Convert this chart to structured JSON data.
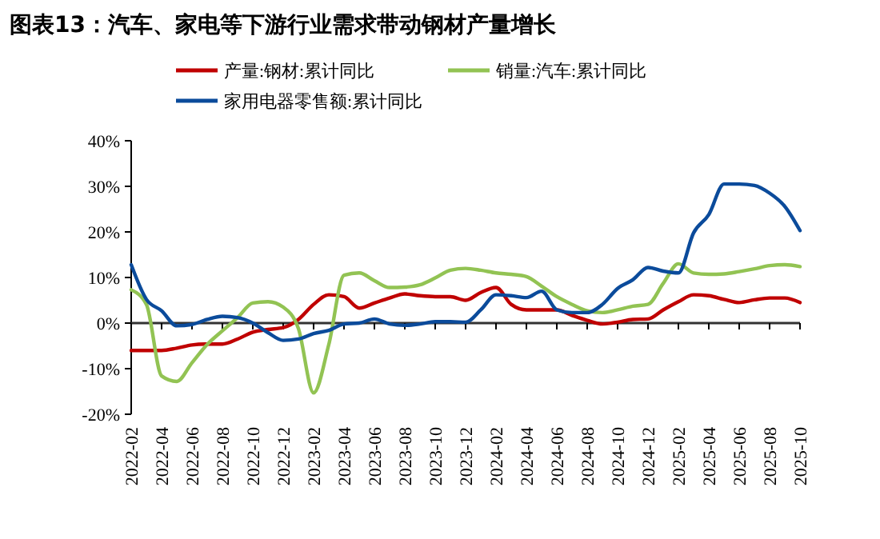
{
  "chart_data": {
    "type": "line",
    "title": "图表13：汽车、家电等下游行业需求带动钢材产量增长",
    "categories": [
      "2022-02",
      null,
      "2022-04",
      null,
      "2022-06",
      null,
      "2022-08",
      null,
      "2022-10",
      null,
      "2022-12",
      null,
      "2023-02",
      null,
      "2023-04",
      null,
      "2023-06",
      null,
      "2023-08",
      null,
      "2023-10",
      null,
      "2023-12",
      null,
      "2024-02",
      null,
      "2024-04",
      null,
      "2024-06",
      null,
      "2024-08",
      null,
      "2024-10",
      null,
      "2024-12",
      null,
      "2025-02",
      null,
      "2025-04",
      null,
      "2025-06",
      null,
      "2025-08",
      null,
      "2025-10"
    ],
    "series": [
      {
        "name": "产量:钢材:累计同比",
        "color": "#c00000",
        "values": [
          -6.0,
          -6.0,
          -6.0,
          -5.5,
          -4.8,
          -4.6,
          -4.6,
          -3.5,
          -2.0,
          -1.4,
          -1.0,
          0.8,
          4.1,
          6.2,
          5.8,
          3.3,
          4.4,
          5.5,
          6.4,
          6.0,
          5.8,
          5.8,
          5.0,
          6.7,
          7.8,
          4.1,
          2.9,
          2.9,
          2.9,
          1.7,
          0.6,
          -0.2,
          0.2,
          0.8,
          0.9,
          2.9,
          4.7,
          6.2,
          6.0,
          5.2,
          4.5,
          5.1,
          5.5,
          5.5,
          4.5
        ]
      },
      {
        "name": "销量:汽车:累计同比",
        "color": "#92c353",
        "values": [
          7.3,
          4.1,
          -11.6,
          -12.8,
          -8.7,
          -4.7,
          -1.7,
          1.2,
          4.4,
          4.7,
          3.5,
          -1.2,
          -15.3,
          -4.7,
          10.5,
          11.0,
          9.3,
          7.8,
          7.9,
          8.4,
          9.9,
          11.6,
          12.0,
          11.6,
          11.0,
          10.7,
          10.2,
          8.1,
          5.8,
          4.1,
          2.7,
          2.3,
          2.9,
          3.7,
          4.1,
          8.7,
          13.0,
          11.0,
          10.7,
          10.8,
          11.3,
          11.9,
          12.6,
          12.8,
          12.4
        ]
      },
      {
        "name": "家用电器零售额:累计同比",
        "color": "#0b4b9b",
        "values": [
          12.8,
          5.2,
          2.7,
          -0.6,
          -0.3,
          0.8,
          1.5,
          1.2,
          0,
          -2.1,
          -3.8,
          -3.5,
          -2.3,
          -1.6,
          -0.2,
          0,
          0.9,
          -0.2,
          -0.5,
          -0.2,
          0.3,
          0.3,
          0.2,
          2.9,
          6.2,
          6.0,
          5.6,
          7.0,
          2.9,
          2.3,
          2.3,
          4.1,
          7.6,
          9.5,
          12.2,
          11.4,
          11.0,
          19.8,
          23.8,
          30.5,
          30.5,
          30.2,
          28.5,
          25.6,
          20.3
        ]
      }
    ],
    "ylim": [
      -20,
      40
    ],
    "yticks": [
      {
        "value": -20,
        "label": "-20%"
      },
      {
        "value": -10,
        "label": "-10%"
      },
      {
        "value": 0,
        "label": "0%"
      },
      {
        "value": 10,
        "label": "10%"
      },
      {
        "value": 20,
        "label": "20%"
      },
      {
        "value": 30,
        "label": "30%"
      },
      {
        "value": 40,
        "label": "40%"
      }
    ],
    "legend": "top"
  }
}
